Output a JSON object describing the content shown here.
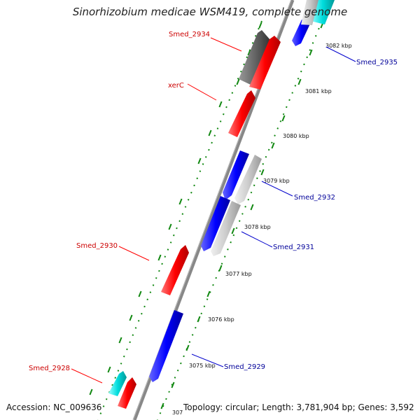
{
  "title": "Sinorhizobium medicae WSM419, complete genome",
  "footer": {
    "accession": "Accession: NC_009636",
    "topology": "Topology: circular; Length: 3,781,904 bp; Genes: 3,592"
  },
  "colors": {
    "backbone": "#808080",
    "forward_gene": "#ff0000",
    "reverse_gene": "#0000ff",
    "rna_gene": "#00cccc",
    "gray_gene": "#666666",
    "light_gray_gene": "#c0c0c0",
    "tick_marks": "#118811",
    "forward_label": "#cc0000",
    "reverse_label": "#000099"
  },
  "ticks": [
    {
      "label": "3075 kbp"
    },
    {
      "label": "3076 kbp"
    },
    {
      "label": "3077 kbp"
    },
    {
      "label": "3078 kbp"
    },
    {
      "label": "3079 kbp"
    },
    {
      "label": "3080 kbp"
    },
    {
      "label": "3081 kbp"
    },
    {
      "label": "3082 kbp"
    },
    {
      "label": "307"
    }
  ],
  "gene_labels": [
    {
      "name": "Smed_2934",
      "strand": "forward"
    },
    {
      "name": "xerC",
      "strand": "forward"
    },
    {
      "name": "Smed_2930",
      "strand": "forward"
    },
    {
      "name": "Smed_2928",
      "strand": "forward"
    },
    {
      "name": "Smed_2935",
      "strand": "reverse"
    },
    {
      "name": "Smed_2932",
      "strand": "reverse"
    },
    {
      "name": "Smed_2931",
      "strand": "reverse"
    },
    {
      "name": "Smed_2929",
      "strand": "reverse"
    }
  ]
}
